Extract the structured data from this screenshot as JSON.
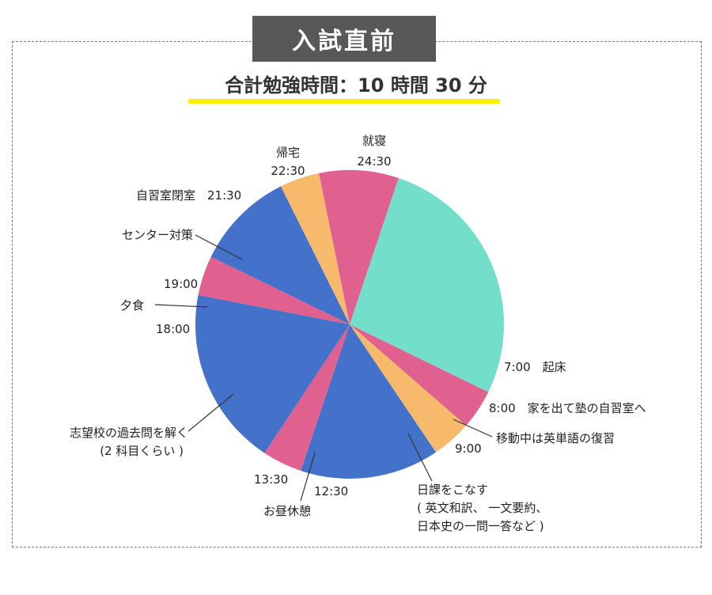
{
  "header": {
    "title": "入試直前",
    "subtitle": "合計勉強時間：10 時間 30 分"
  },
  "colors": {
    "green": "#73dec9",
    "pink": "#e0608f",
    "orange": "#f7ba6c",
    "blue": "#4472ca",
    "highlight": "#fff200",
    "title_bg": "#595757"
  },
  "chart_data": {
    "type": "pie",
    "unit": "hours",
    "start_time": "7:00",
    "slices": [
      {
        "label": "起床",
        "time": "7:00",
        "hours": 1,
        "color": "#e0608f"
      },
      {
        "label": "家を出て塾の自習室へ",
        "time": "8:00",
        "hours": 1,
        "color": "#f7ba6c"
      },
      {
        "label": "日課をこなす ( 英文和訳、 一文要約、 日本史の一問一答など )",
        "time": "9:00",
        "hours": 3.5,
        "color": "#4472ca"
      },
      {
        "label": "お昼休憩",
        "time": "12:30",
        "hours": 1,
        "color": "#e0608f"
      },
      {
        "label": "志望校の過去問を解く (2 科目くらい )",
        "time": "13:30",
        "hours": 4.5,
        "color": "#4472ca"
      },
      {
        "label": "夕食",
        "time": "18:00",
        "hours": 1,
        "color": "#e0608f"
      },
      {
        "label": "センター対策",
        "time": "19:00",
        "hours": 2.5,
        "color": "#4472ca"
      },
      {
        "label": "自習室閉室",
        "time": "21:30",
        "hours": 1,
        "color": "#f7ba6c"
      },
      {
        "label": "帰宅",
        "time": "22:30",
        "hours": 2,
        "color": "#e0608f"
      },
      {
        "label": "就寝",
        "time": "24:30",
        "hours": 6.5,
        "color": "#73dec9"
      }
    ],
    "labels": {
      "kisho": "7:00　起床",
      "ie": "8:00　家を出て塾の自習室へ",
      "idou": "移動中は英単語の復習",
      "t900": "9:00",
      "nikka1": "日課をこなす",
      "nikka2": "( 英文和訳、 一文要約、",
      "nikka3": "日本史の一問一答など )",
      "t1230": "12:30",
      "ohiru": "お昼休憩",
      "t1330": "13:30",
      "kakomon1": "志望校の過去問を解く",
      "kakomon2": "(2 科目くらい )",
      "t1800": "18:00",
      "yushoku": "夕食",
      "t1900": "19:00",
      "center": "センター対策",
      "heishitsu": "自習室閉室　21:30",
      "kitaku1": "帰宅",
      "kitaku2": "22:30",
      "shushin1": "就寝",
      "shushin2": "24:30"
    }
  }
}
